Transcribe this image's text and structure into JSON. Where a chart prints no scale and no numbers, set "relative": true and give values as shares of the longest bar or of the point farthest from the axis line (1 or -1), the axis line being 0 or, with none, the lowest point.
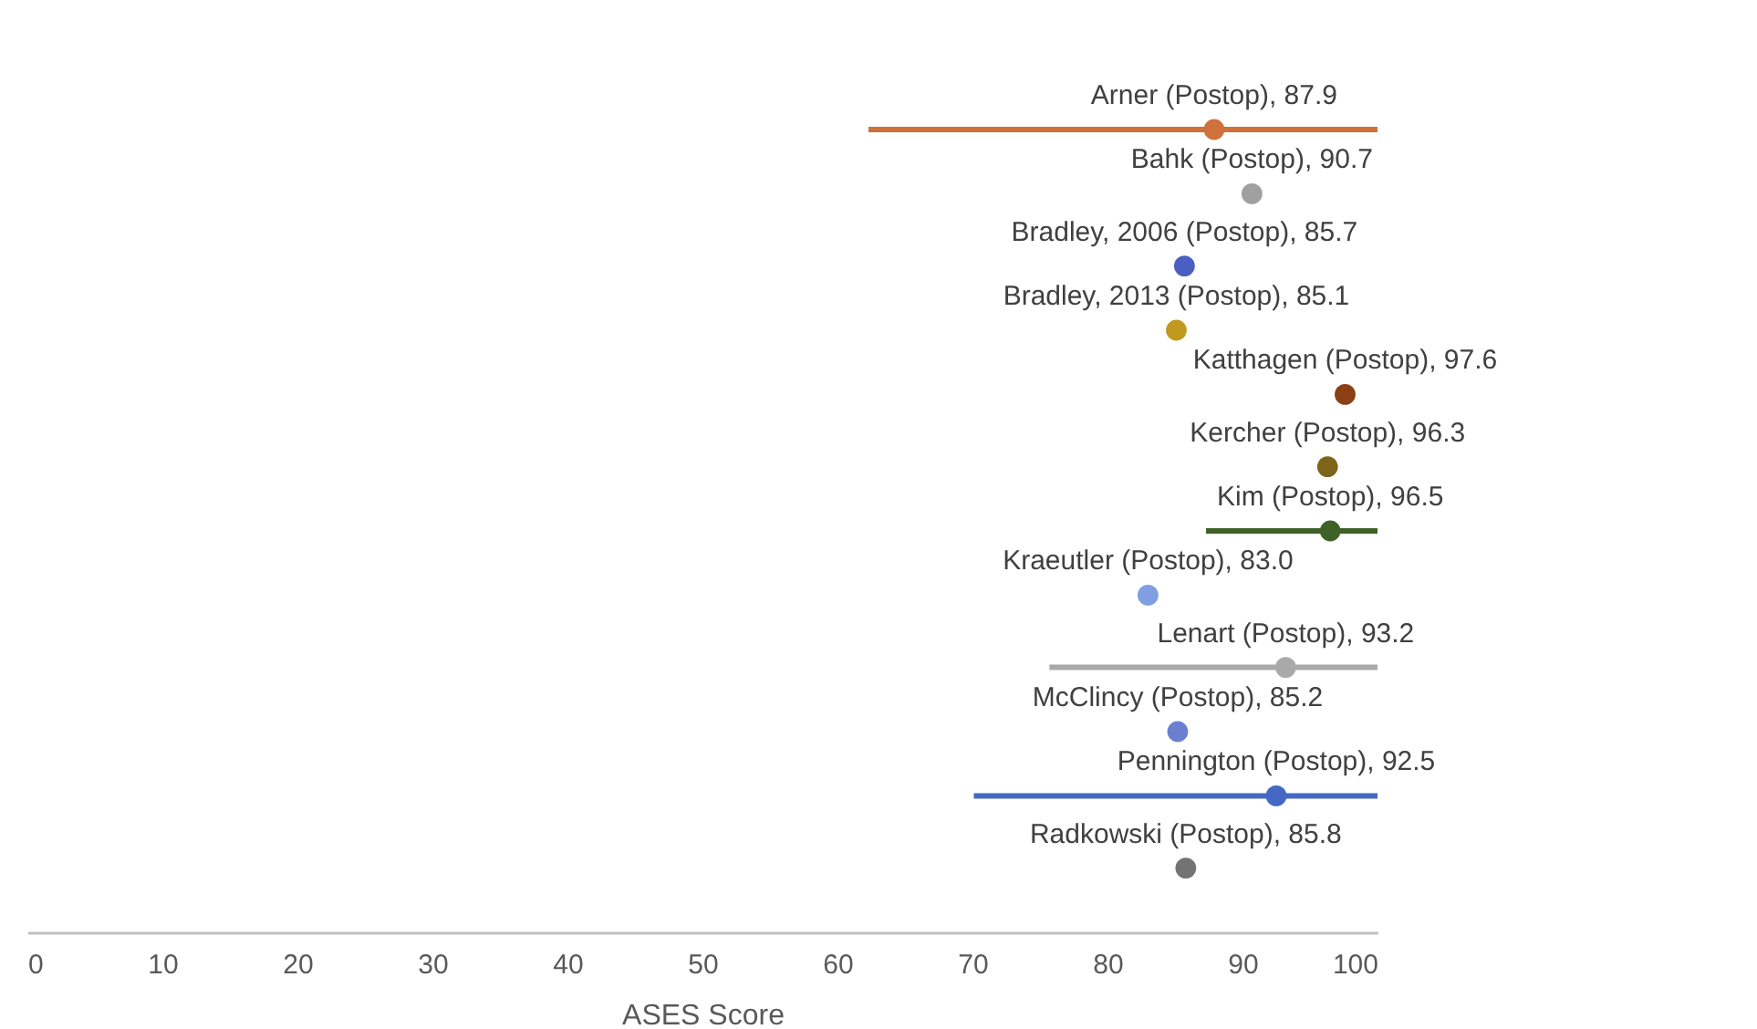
{
  "chart_data": {
    "type": "scatter",
    "relative": true,
    "marker": "circle",
    "xlabel": "ASES Score",
    "xlim": [
      0,
      100
    ],
    "xticks": [
      0,
      10,
      20,
      30,
      40,
      50,
      60,
      70,
      80,
      90,
      100
    ],
    "x": [
      87.9,
      90.7,
      85.7,
      85.1,
      97.6,
      96.3,
      96.5,
      83.0,
      93.2,
      85.2,
      92.5,
      85.8
    ],
    "values": [
      1,
      0.92,
      0.83,
      0.75,
      0.67,
      0.58,
      0.5,
      0.42,
      0.33,
      0.25,
      0.17,
      0.08
    ],
    "xerrors": [
      [
        62.3,
        100
      ],
      null,
      null,
      null,
      null,
      null,
      [
        87.3,
        100
      ],
      null,
      [
        75.7,
        100
      ],
      null,
      [
        70.1,
        100
      ],
      null
    ],
    "colors": [
      "#d0703a",
      "#a0a0a0",
      "#4a5fc1",
      "#c09a1f",
      "#8b3f14",
      "#7d6418",
      "#3f6128",
      "#7f9fe0",
      "#a9a9a9",
      "#6a7fd0",
      "#4668c4",
      "#737373"
    ],
    "annotations": [
      {
        "text": "Arner (Postop), 87.9",
        "x": 87.9,
        "y": 1
      },
      {
        "text": "Bahk (Postop), 90.7",
        "x": 90.7,
        "y": 0.92
      },
      {
        "text": "Bradley, 2006 (Postop), 85.7",
        "x": 85.7,
        "y": 0.83
      },
      {
        "text": "Bradley, 2013 (Postop), 85.1",
        "x": 85.1,
        "y": 0.75
      },
      {
        "text": "Katthagen (Postop), 97.6",
        "x": 97.6,
        "y": 0.67
      },
      {
        "text": "Kercher (Postop), 96.3",
        "x": 96.3,
        "y": 0.58
      },
      {
        "text": "Kim (Postop), 96.5",
        "x": 96.5,
        "y": 0.5
      },
      {
        "text": "Kraeutler (Postop), 83.0",
        "x": 83.0,
        "y": 0.42
      },
      {
        "text": "Lenart (Postop), 93.2",
        "x": 93.2,
        "y": 0.33
      },
      {
        "text": "McClincy (Postop), 85.2",
        "x": 85.2,
        "y": 0.25
      },
      {
        "text": "Pennington (Postop), 92.5",
        "x": 92.5,
        "y": 0.17
      },
      {
        "text": "Radkowski (Postop), 85.8",
        "x": 85.8,
        "y": 0.08
      }
    ]
  }
}
